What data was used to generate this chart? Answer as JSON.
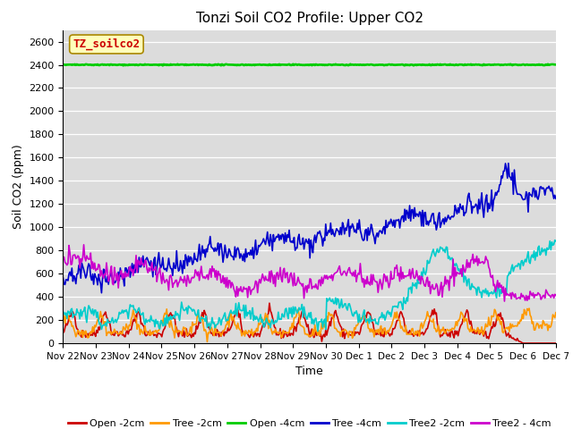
{
  "title": "Tonzi Soil CO2 Profile: Upper CO2",
  "xlabel": "Time",
  "ylabel": "Soil CO2 (ppm)",
  "ylim": [
    0,
    2700
  ],
  "yticks": [
    0,
    200,
    400,
    600,
    800,
    1000,
    1200,
    1400,
    1600,
    1800,
    2000,
    2200,
    2400,
    2600
  ],
  "bg_color": "#dcdcdc",
  "fig_bg": "#ffffff",
  "series": [
    {
      "label": "Open -2cm",
      "color": "#cc0000",
      "lw": 1.2
    },
    {
      "label": "Tree -2cm",
      "color": "#ff9900",
      "lw": 1.2
    },
    {
      "label": "Open -4cm",
      "color": "#00cc00",
      "lw": 2.0
    },
    {
      "label": "Tree -4cm",
      "color": "#0000cc",
      "lw": 1.2
    },
    {
      "label": "Tree2 -2cm",
      "color": "#00cccc",
      "lw": 1.2
    },
    {
      "label": "Tree2 - 4cm",
      "color": "#cc00cc",
      "lw": 1.2
    }
  ],
  "legend_label": "TZ_soilco2",
  "legend_bbox_facecolor": "#ffffbb",
  "legend_bbox_edgecolor": "#aa8800",
  "legend_text_color": "#cc0000",
  "title_fontsize": 11,
  "axis_label_fontsize": 9,
  "tick_fontsize": 8,
  "legend_fontsize": 8,
  "annotation_fontsize": 9,
  "num_points": 500,
  "random_seed": 42
}
